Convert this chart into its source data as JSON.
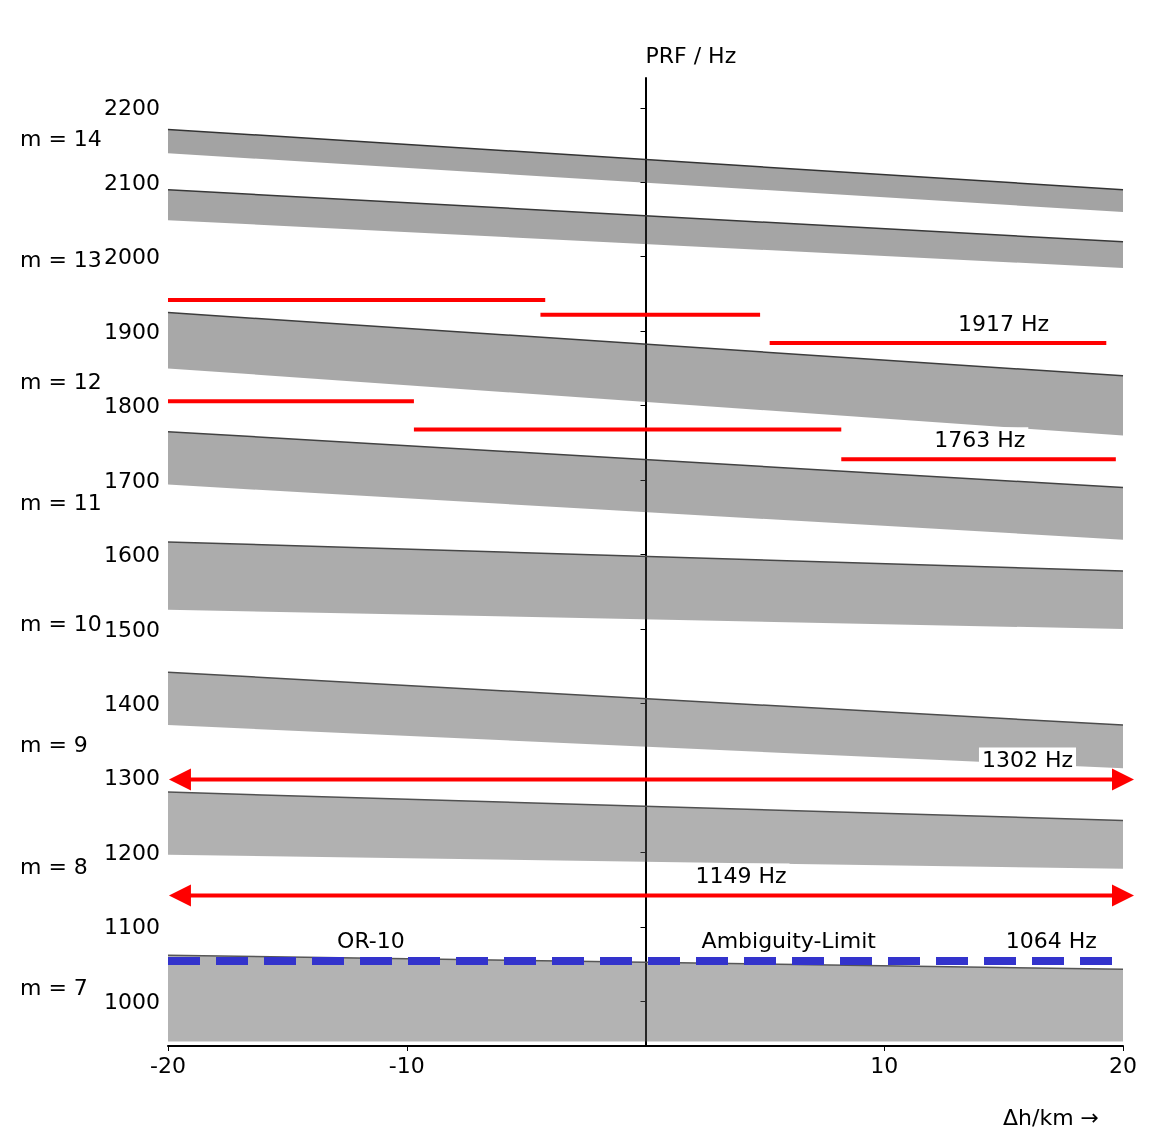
{
  "chart_data": {
    "type": "line",
    "ylabel": "PRF / Hz",
    "xlabel": "Δh/km →",
    "xlim": [
      -20,
      20
    ],
    "ylim": [
      940,
      2240
    ],
    "xticks": [
      -20,
      -10,
      10,
      20
    ],
    "yticks": [
      {
        "value": 1000,
        "label": "1000"
      },
      1100,
      1200,
      1300,
      1400,
      1500,
      1600,
      1700,
      1800,
      1900,
      2000,
      2100,
      2200
    ],
    "grid": false,
    "marker": "none",
    "line_style": "solid",
    "series": [
      {
        "type": "line",
        "color": "#333333",
        "x": [
          -20,
          20
        ],
        "lower": [
          2139,
          2060
        ],
        "upper": [
          2171,
          2090
        ],
        "values": [
          2171,
          2090
        ]
      },
      {
        "type": "line",
        "color": "#383838",
        "x": [
          -20,
          20
        ],
        "lower": [
          2049,
          1985
        ],
        "upper": [
          2090,
          2020
        ],
        "values": [
          2090,
          2020
        ]
      },
      {
        "type": "line",
        "color": "#3d3d3d",
        "x": [
          -20,
          20
        ],
        "lower": [
          1850,
          1760
        ],
        "upper": [
          1925,
          1840
        ],
        "values": [
          1925,
          1840
        ]
      },
      {
        "type": "line",
        "color": "#424242",
        "x": [
          -20,
          20
        ],
        "lower": [
          1694,
          1620
        ],
        "upper": [
          1765,
          1690
        ],
        "values": [
          1765,
          1690
        ]
      },
      {
        "type": "line",
        "color": "#474747",
        "x": [
          -20,
          20
        ],
        "lower": [
          1526,
          1500
        ],
        "upper": [
          1617,
          1578
        ],
        "values": [
          1617,
          1578
        ]
      },
      {
        "type": "line",
        "color": "#4c4c4c",
        "x": [
          -20,
          20
        ],
        "lower": [
          1371,
          1313
        ],
        "upper": [
          1442,
          1371
        ],
        "values": [
          1442,
          1371
        ]
      },
      {
        "type": "line",
        "color": "#515151",
        "x": [
          -20,
          20
        ],
        "lower": [
          1197,
          1178
        ],
        "upper": [
          1281,
          1243
        ],
        "values": [
          1281,
          1243
        ]
      },
      {
        "type": "line",
        "color": "#565656",
        "x": [
          -20,
          20
        ],
        "lower": [
          946,
          946
        ],
        "upper": [
          1062,
          1043
        ],
        "values": [
          1062,
          1043
        ]
      },
      {
        "type": "line",
        "color": "#ff0000",
        "x": [
          -20,
          -4.2
        ],
        "values": [
          1942,
          1942
        ]
      },
      {
        "type": "line",
        "color": "#ff0000",
        "x": [
          -4.4,
          4.8
        ],
        "values": [
          1922,
          1922
        ]
      },
      {
        "type": "line",
        "color": "#ff0000",
        "x": [
          5.2,
          19.3
        ],
        "values": [
          1884,
          1884
        ]
      },
      {
        "type": "line",
        "color": "#ff0000",
        "x": [
          -20,
          -9.7
        ],
        "values": [
          1806,
          1806
        ]
      },
      {
        "type": "line",
        "color": "#ff0000",
        "x": [
          -9.7,
          8.2
        ],
        "values": [
          1768,
          1768
        ]
      },
      {
        "type": "line",
        "color": "#ff0000",
        "x": [
          8.2,
          19.7
        ],
        "values": [
          1728,
          1728
        ]
      },
      {
        "type": "line",
        "color": "#ff0000",
        "marker": "triangle",
        "x": [
          -19.5,
          20
        ],
        "values": [
          1298,
          1298
        ]
      },
      {
        "type": "line",
        "color": "#ff0000",
        "marker": "triangle",
        "x": [
          -19.5,
          20
        ],
        "values": [
          1142,
          1142
        ]
      }
    ],
    "ref_lines": [
      {
        "axis": "y",
        "value": 1055,
        "color": "#3333cc",
        "line_style": "dashed"
      }
    ],
    "annotations": [
      "m = 14",
      "m = 13",
      "m = 12",
      "m = 11",
      "m = 10",
      "m = 9",
      "m = 8",
      "m = 7",
      {
        "text": "1917 Hz",
        "x": 15,
        "y": 1884
      },
      {
        "text": "1763 Hz",
        "x": 14,
        "y": 1728
      },
      {
        "text": "1302 Hz",
        "x": 16,
        "y": 1298
      },
      {
        "text": "1149 Hz",
        "x": 4,
        "y": 1142
      },
      {
        "text": "Ambiguity-Limit",
        "x": 6,
        "y": 1055
      },
      {
        "text": "1064 Hz",
        "x": 17,
        "y": 1055
      },
      {
        "text": "OR-10",
        "x": -11.5,
        "y": 1055
      }
    ]
  }
}
